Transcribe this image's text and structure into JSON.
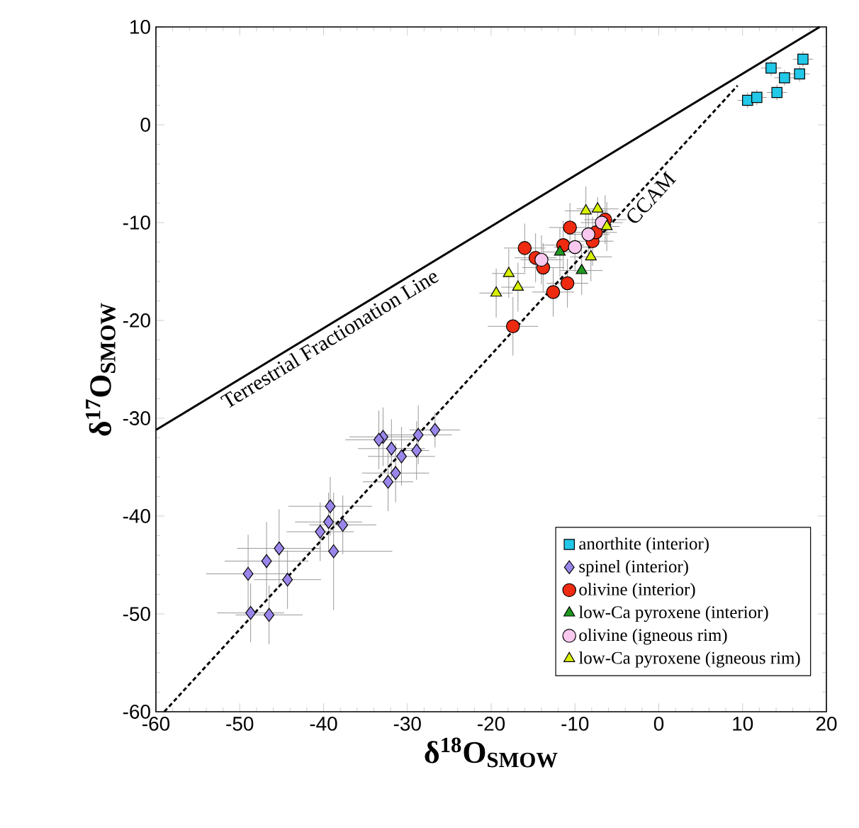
{
  "chart_data": {
    "type": "scatter",
    "xlabel": "δ$^{18}$O$_{SMOW}$",
    "ylabel": "δ$^{17}$O$_{SMOW}$",
    "xlim": [
      -60,
      20
    ],
    "ylim": [
      -60,
      10
    ],
    "xticks": [
      -60,
      -50,
      -40,
      -30,
      -20,
      -10,
      0,
      10,
      20
    ],
    "yticks": [
      -60,
      -50,
      -40,
      -30,
      -20,
      -10,
      0,
      10
    ],
    "legend": "bottom right",
    "series": [
      {
        "name": "anorthite (interior)",
        "color": "#22c8e8",
        "marker": "square",
        "x": [
          10.6,
          11.7,
          13.4,
          14.1,
          15.0,
          16.8,
          17.2
        ],
        "values": [
          2.5,
          2.8,
          5.8,
          3.3,
          4.8,
          5.2,
          6.7
        ],
        "xerrors": [
          1.2,
          1.2,
          1.2,
          1.2,
          1.2,
          1.2,
          1.2
        ],
        "errors": [
          0.8,
          0.8,
          0.8,
          0.8,
          0.8,
          0.8,
          0.8
        ]
      },
      {
        "name": "spinel (interior)",
        "color": "#9a86ea",
        "marker": "diamond",
        "x": [
          -32.9,
          -33.4,
          -31.9,
          -30.7,
          -28.7,
          -26.7,
          -28.9,
          -31.4,
          -32.3,
          -39.2,
          -39.4,
          -37.7,
          -40.4,
          -38.8,
          -45.3,
          -46.8,
          -49.0,
          -44.3,
          -48.7,
          -46.5
        ],
        "values": [
          -31.9,
          -32.2,
          -33.1,
          -33.9,
          -31.7,
          -31.2,
          -33.3,
          -35.6,
          -36.5,
          -39.0,
          -40.6,
          -40.9,
          -41.6,
          -43.6,
          -43.3,
          -44.6,
          -45.9,
          -46.5,
          -49.9,
          -50.1
        ],
        "xerrors": [
          4,
          4,
          4,
          4,
          4,
          3,
          1.5,
          4,
          3,
          5,
          4,
          4,
          4,
          7,
          5,
          5,
          5,
          4,
          4,
          4
        ],
        "errors": [
          3,
          3,
          3,
          3,
          3,
          1.8,
          3,
          3,
          3,
          3,
          3,
          3,
          3,
          6,
          4,
          4,
          4,
          3,
          3,
          3
        ]
      },
      {
        "name": "olivine (interior)",
        "color": "#ee2a10",
        "marker": "circle",
        "x": [
          -17.4,
          -12.6,
          -10.9,
          -16.0,
          -14.7,
          -13.8,
          -10.6,
          -11.4,
          -7.9,
          -6.4,
          -7.5
        ],
        "values": [
          -20.6,
          -17.1,
          -16.2,
          -12.6,
          -13.6,
          -14.6,
          -10.5,
          -12.3,
          -11.9,
          -9.7,
          -11.0
        ],
        "xerrors": [
          3,
          2.5,
          2.5,
          2.5,
          2.5,
          2.5,
          2.5,
          2.5,
          2.5,
          2.5,
          2.5
        ],
        "errors": [
          3,
          2.5,
          2.5,
          2.5,
          2.5,
          2.5,
          2.5,
          2.5,
          2.5,
          2.5,
          1.2
        ]
      },
      {
        "name": "low-Ca pyroxene (interior)",
        "color": "#1f9a1f",
        "marker": "triangle",
        "x": [
          -11.8,
          -9.2
        ],
        "values": [
          -13.0,
          -14.9
        ],
        "xerrors": [
          2,
          2.5
        ],
        "errors": [
          2.5,
          2.5
        ]
      },
      {
        "name": "olivine (igneous rim)",
        "color": "#f8c8ee",
        "marker": "circle",
        "x": [
          -14.0,
          -10.0,
          -8.4,
          -6.8
        ],
        "values": [
          -13.8,
          -12.5,
          -11.2,
          -10.0
        ],
        "xerrors": [
          2.5,
          2.5,
          2.5,
          2.5
        ],
        "errors": [
          2.5,
          2.5,
          2.5,
          1.5
        ]
      },
      {
        "name": "low-Ca pyroxene (igneous rim)",
        "color": "#d8f000",
        "marker": "triangle",
        "x": [
          -19.4,
          -16.8,
          -17.9,
          -8.7,
          -7.3,
          -8.1,
          -6.2
        ],
        "values": [
          -17.2,
          -16.6,
          -15.2,
          -8.8,
          -8.6,
          -13.5,
          -10.4
        ],
        "xerrors": [
          2,
          2,
          2,
          2.5,
          2.5,
          2.5,
          1.5
        ],
        "errors": [
          2.5,
          2.5,
          2.5,
          2.5,
          1.2,
          2.5,
          2.5
        ]
      },
      {
        "type": "line",
        "color": "#000000",
        "line_style": "solid",
        "marker": "none",
        "x": [
          -60,
          19.2
        ],
        "values": [
          -31.2,
          10
        ]
      },
      {
        "type": "line",
        "color": "#000000",
        "line_style": "dashed",
        "marker": "none",
        "x": [
          -59,
          9.4
        ],
        "values": [
          -60,
          4
        ]
      }
    ],
    "annotations": [
      {
        "text": "Terrestrial Fractionation Line",
        "x": -40,
        "y": -20.8
      },
      {
        "text": "CCAM",
        "x": -2,
        "y": -6.7
      }
    ]
  }
}
